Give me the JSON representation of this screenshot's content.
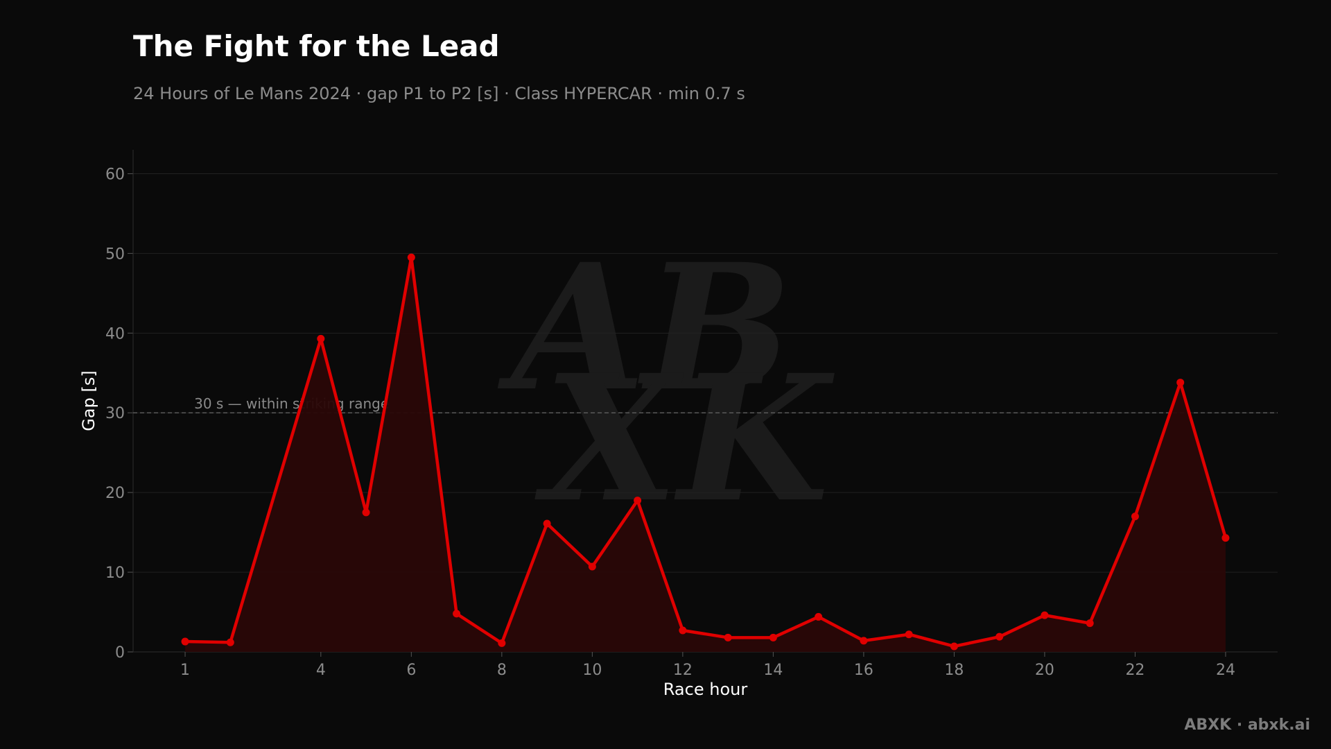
{
  "chart_data": {
    "type": "area",
    "title": "The Fight for the Lead",
    "subtitle": "24 Hours of Le Mans 2024 · gap P1 to P2 [s] · Class HYPERCAR · min 0.7 s",
    "xlabel": "Race hour",
    "ylabel": "Gap [s]",
    "xlim": [
      -0.15,
      25.15
    ],
    "ylim": [
      0,
      63
    ],
    "x_ticks": [
      1,
      4,
      6,
      8,
      10,
      12,
      14,
      16,
      18,
      20,
      22,
      24
    ],
    "y_ticks": [
      0,
      10,
      20,
      30,
      40,
      50,
      60
    ],
    "grid": true,
    "x": [
      1,
      2,
      4,
      5,
      6,
      7,
      8,
      9,
      10,
      11,
      12,
      13,
      14,
      15,
      16,
      17,
      18,
      19,
      20,
      21,
      22,
      23,
      24
    ],
    "series": [
      {
        "values": [
          1.3,
          1.2,
          39.3,
          17.5,
          49.5,
          4.8,
          1.1,
          16.1,
          10.7,
          19.0,
          2.7,
          1.8,
          1.8,
          4.4,
          1.4,
          2.2,
          0.7,
          1.9,
          4.6,
          3.6,
          17.0,
          33.8,
          14.3
        ],
        "color": "#e00000"
      }
    ],
    "reference_line": {
      "y": 30,
      "label": "30 s — within striking range"
    },
    "watermark_text": "ABXK"
  },
  "footer": {
    "brand": "ABXK · abxk.ai"
  },
  "colors": {
    "background": "#0a0a0a",
    "line": "#e00000",
    "fill": "#2a0707",
    "grid": "#222222",
    "tick_label": "#8c8c8c",
    "axis_label": "#ffffff"
  }
}
